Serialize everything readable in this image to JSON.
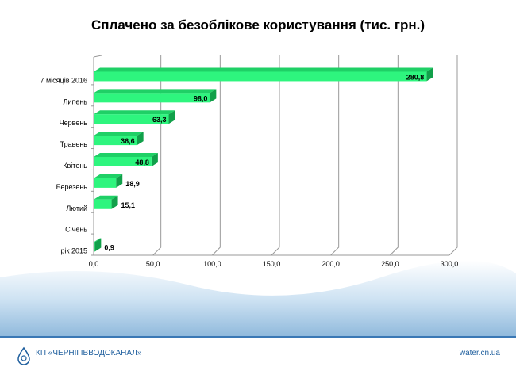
{
  "chart_data": {
    "type": "bar",
    "orientation": "horizontal",
    "title": "Сплачено за безоблікове користування (тис. грн.)",
    "categories": [
      "7 місяців 2016",
      "Липень",
      "Червень",
      "Травень",
      "Квітень",
      "Березень",
      "Лютий",
      "Січень",
      "рік 2015"
    ],
    "values": [
      280.8,
      98.0,
      63.3,
      36.6,
      48.8,
      18.9,
      15.1,
      null,
      0.9
    ],
    "value_labels": [
      "280,8",
      "98,0",
      "63,3",
      "36,6",
      "48,8",
      "18,9",
      "15,1",
      "",
      "0,9"
    ],
    "xlim": [
      0,
      300
    ],
    "xticks": [
      "0,0",
      "50,0",
      "100,0",
      "150,0",
      "200,0",
      "250,0",
      "300,0"
    ],
    "xlabel": "",
    "ylabel": "",
    "grid": true,
    "colors": {
      "bar": "#2ef57e",
      "bar_top": "#1fd066",
      "bar_side": "#11a04a"
    }
  },
  "footer": {
    "org": "КП «ЧЕРНІГІВВОДОКАНАЛ»",
    "site": "water.cn.ua"
  }
}
